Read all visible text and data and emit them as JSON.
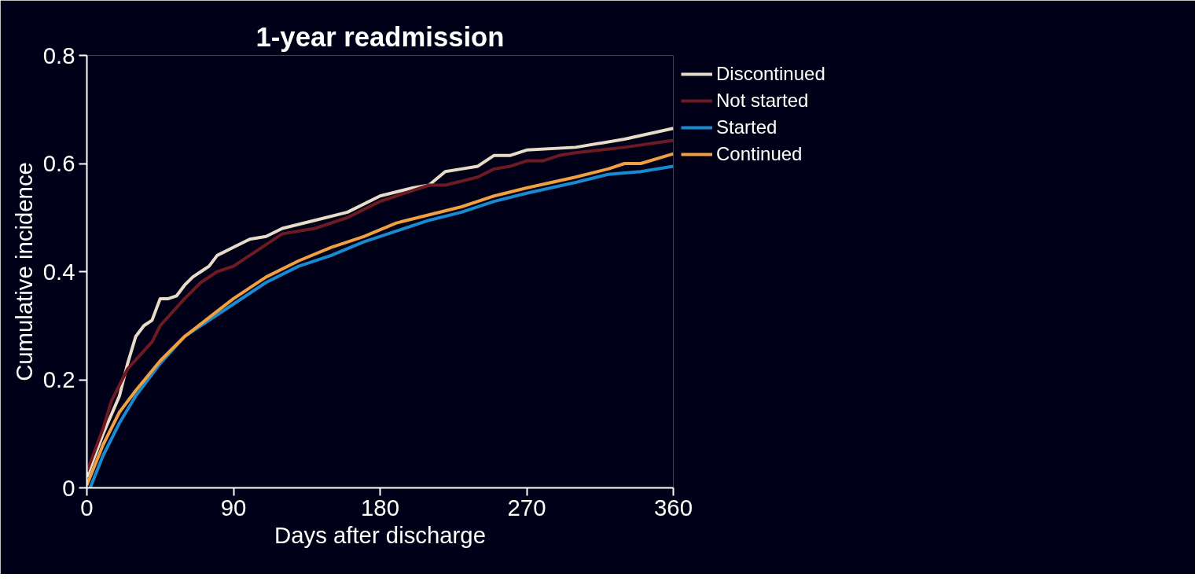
{
  "chart_data": {
    "type": "line",
    "title": "1-year readmission",
    "xlabel": "Days after discharge",
    "ylabel": "Cumulative incidence",
    "xlim": [
      0,
      360
    ],
    "xticks": [
      0,
      90,
      180,
      270,
      360
    ],
    "ylim": [
      0,
      0.8
    ],
    "yticks": [
      0,
      0.2,
      0.4,
      0.6,
      0.8
    ],
    "grid": false,
    "legend": "top right",
    "line_style": "solid",
    "marker": "none",
    "series": [
      {
        "name": "Discontinued",
        "color": "#e8dcc8",
        "x": [
          0,
          10,
          20,
          25,
          30,
          35,
          40,
          45,
          50,
          55,
          60,
          65,
          70,
          75,
          80,
          90,
          100,
          110,
          120,
          140,
          160,
          180,
          200,
          210,
          220,
          230,
          240,
          250,
          260,
          270,
          300,
          330,
          360
        ],
        "values": [
          0.02,
          0.1,
          0.17,
          0.23,
          0.28,
          0.3,
          0.31,
          0.35,
          0.35,
          0.355,
          0.375,
          0.39,
          0.4,
          0.41,
          0.43,
          0.445,
          0.46,
          0.465,
          0.48,
          0.495,
          0.51,
          0.54,
          0.555,
          0.56,
          0.585,
          0.59,
          0.595,
          0.615,
          0.615,
          0.625,
          0.63,
          0.645,
          0.665
        ]
      },
      {
        "name": "Not started",
        "color": "#6e1a22",
        "x": [
          0,
          10,
          15,
          25,
          40,
          45,
          60,
          70,
          80,
          90,
          100,
          120,
          140,
          160,
          180,
          200,
          210,
          220,
          240,
          250,
          260,
          270,
          280,
          290,
          300,
          330,
          360
        ],
        "values": [
          0.03,
          0.11,
          0.16,
          0.22,
          0.27,
          0.3,
          0.35,
          0.38,
          0.4,
          0.41,
          0.43,
          0.47,
          0.48,
          0.5,
          0.53,
          0.55,
          0.56,
          0.56,
          0.575,
          0.59,
          0.595,
          0.605,
          0.605,
          0.615,
          0.62,
          0.63,
          0.643
        ]
      },
      {
        "name": "Started",
        "color": "#1a8ad0",
        "x": [
          2,
          10,
          20,
          30,
          45,
          60,
          75,
          90,
          110,
          130,
          150,
          170,
          190,
          210,
          230,
          250,
          270,
          300,
          320,
          340,
          360
        ],
        "values": [
          0,
          0.06,
          0.12,
          0.17,
          0.23,
          0.28,
          0.31,
          0.34,
          0.38,
          0.41,
          0.43,
          0.455,
          0.475,
          0.495,
          0.51,
          0.53,
          0.545,
          0.565,
          0.58,
          0.585,
          0.595
        ]
      },
      {
        "name": "Continued",
        "color": "#f0a040",
        "x": [
          0,
          10,
          20,
          30,
          45,
          60,
          75,
          90,
          110,
          130,
          150,
          170,
          190,
          210,
          230,
          250,
          270,
          300,
          320,
          330,
          340,
          360
        ],
        "values": [
          0.005,
          0.08,
          0.14,
          0.18,
          0.235,
          0.28,
          0.315,
          0.35,
          0.39,
          0.42,
          0.445,
          0.465,
          0.49,
          0.505,
          0.52,
          0.54,
          0.555,
          0.575,
          0.59,
          0.6,
          0.6,
          0.618
        ]
      }
    ]
  }
}
